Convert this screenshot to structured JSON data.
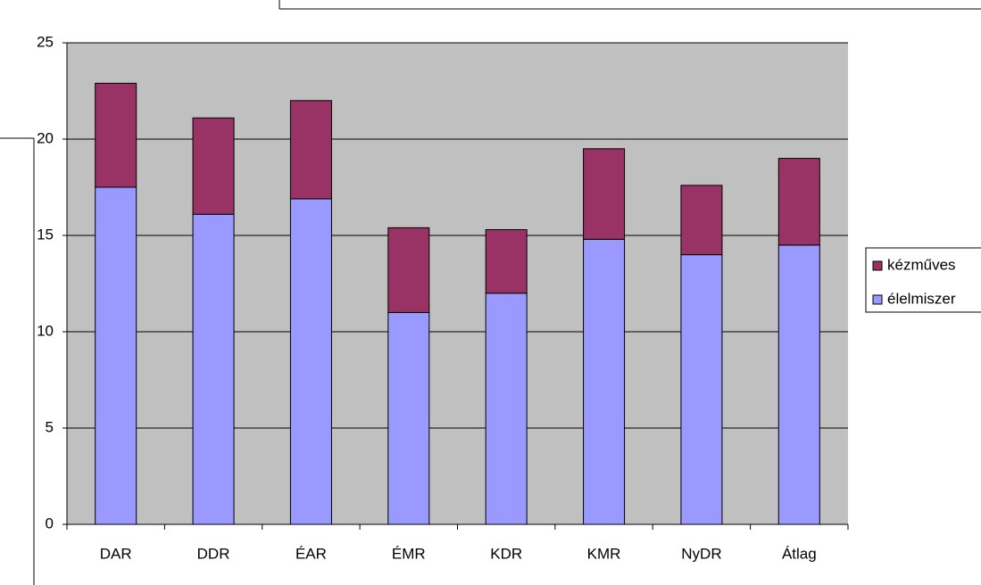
{
  "chart_data": {
    "type": "stacked_bar",
    "categories": [
      "DAR",
      "DDR",
      "ÉAR",
      "ÉMR",
      "KDR",
      "KMR",
      "NyDR",
      "Átlag"
    ],
    "series": [
      {
        "name": "élelmiszer",
        "color": "#9999ff",
        "values": [
          17.5,
          16.1,
          16.9,
          11.0,
          12.0,
          14.8,
          14.0,
          14.5
        ]
      },
      {
        "name": "kézműves",
        "color": "#993366",
        "values": [
          5.4,
          5.0,
          5.1,
          4.4,
          3.3,
          4.7,
          3.6,
          4.5
        ]
      }
    ],
    "ylim": [
      0,
      25
    ],
    "yticks": [
      0,
      5,
      10,
      15,
      20,
      25
    ],
    "grid": true,
    "legend": "right"
  }
}
